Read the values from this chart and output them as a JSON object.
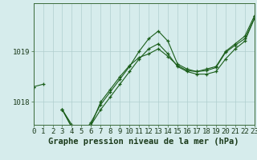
{
  "title": "Graphe pression niveau de la mer (hPa)",
  "hours": [
    0,
    1,
    2,
    3,
    4,
    5,
    6,
    7,
    8,
    9,
    10,
    11,
    12,
    13,
    14,
    15,
    16,
    17,
    18,
    19,
    20,
    21,
    22,
    23
  ],
  "curve_main": [
    1018.3,
    1018.35,
    null,
    1017.85,
    1017.55,
    1017.35,
    1017.6,
    1017.95,
    1018.2,
    1018.45,
    1018.7,
    1019.0,
    1019.25,
    1019.4,
    1019.2,
    1018.75,
    1018.65,
    1018.6,
    1018.65,
    1018.7,
    1019.0,
    1019.15,
    1019.3,
    1019.7
  ],
  "curve_low": [
    null,
    null,
    null,
    1017.85,
    1017.5,
    1017.3,
    1017.55,
    1017.85,
    1018.1,
    1018.35,
    1018.6,
    1018.85,
    1019.05,
    1019.15,
    1018.95,
    1018.7,
    1018.6,
    1018.55,
    1018.55,
    1018.6,
    1018.85,
    1019.05,
    1019.2,
    1019.65
  ],
  "curve_mid": [
    null,
    null,
    null,
    1017.85,
    1017.5,
    1017.3,
    1017.55,
    1018.0,
    1018.25,
    1018.5,
    1018.72,
    1018.88,
    1018.95,
    1019.05,
    1018.9,
    1018.72,
    1018.62,
    1018.6,
    1018.62,
    1018.68,
    1018.98,
    1019.12,
    1019.25,
    1019.65
  ],
  "curve_diag": [
    1018.3,
    null,
    null,
    null,
    null,
    null,
    null,
    null,
    null,
    null,
    null,
    null,
    null,
    null,
    null,
    null,
    null,
    null,
    null,
    null,
    null,
    null,
    null,
    1019.7
  ],
  "bg_color": "#d6ecec",
  "grid_color": "#b0cece",
  "line_color": "#1a5e1a",
  "ymin": 1017.55,
  "ymax": 1019.95,
  "ytick_vals": [
    1018.0,
    1019.0
  ],
  "ytick_labels": [
    "1018",
    "1019"
  ],
  "tick_fontsize": 6.5,
  "title_fontsize": 7.5
}
